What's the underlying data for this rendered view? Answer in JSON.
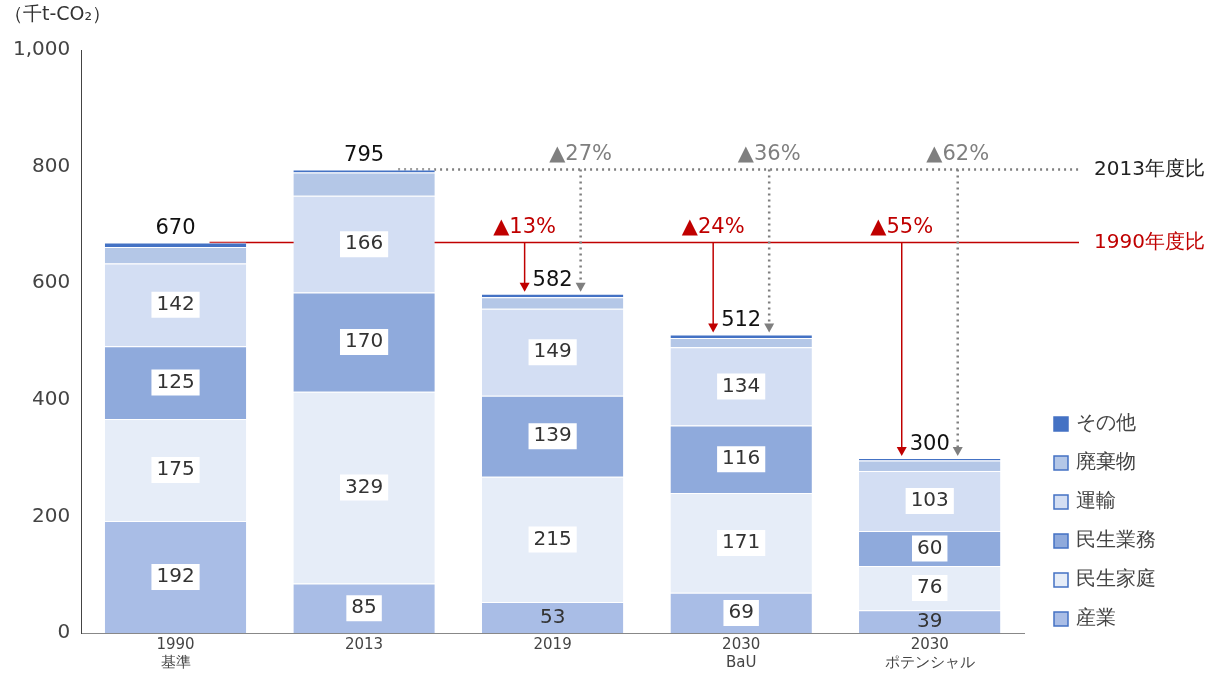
{
  "chart_data": {
    "type": "bar",
    "stacked": true,
    "ylabel": "（千t-CO₂）",
    "categories": [
      "1990\n基準",
      "2013",
      "2019",
      "2030\nBaU",
      "2030\nポテンシャル"
    ],
    "series": [
      {
        "name": "産業",
        "color": "#a9bde6",
        "values": [
          192,
          85,
          53,
          69,
          39
        ],
        "value_labels": [
          "192",
          "85",
          "53",
          "69",
          "39"
        ]
      },
      {
        "name": "民生家庭",
        "color": "#e6edf8",
        "values": [
          175,
          329,
          215,
          171,
          76
        ],
        "value_labels": [
          "175",
          "329",
          "215",
          "171",
          "76"
        ]
      },
      {
        "name": "民生業務",
        "color": "#8faadc",
        "values": [
          125,
          170,
          139,
          116,
          60
        ],
        "value_labels": [
          "125",
          "170",
          "139",
          "116",
          "60"
        ]
      },
      {
        "name": "運輸",
        "color": "#d3def3",
        "values": [
          142,
          166,
          149,
          134,
          103
        ],
        "value_labels": [
          "142",
          "166",
          "149",
          "134",
          "103"
        ]
      },
      {
        "name": "廃棄物",
        "color": "#b4c7e7",
        "values": [
          28,
          40,
          20,
          16,
          18
        ]
      },
      {
        "name": "その他",
        "color": "#4472c4",
        "values": [
          8,
          5,
          6,
          6,
          4
        ]
      }
    ],
    "totals": [
      "670",
      "795",
      "582",
      "512",
      "300"
    ],
    "ylim": [
      0,
      1000
    ],
    "yticks": [
      0,
      200,
      400,
      600,
      800,
      {
        "value": 1000,
        "label": "1,000"
      }
    ],
    "grid": false,
    "legend": "right",
    "ref_lines": [
      {
        "axis": "y",
        "value": 795,
        "label": "2013年度比",
        "color": "#7f7f7f",
        "line_style": "dotted"
      },
      {
        "axis": "y",
        "value": 670,
        "label": "1990年度比",
        "color": "#c00000",
        "line_style": "solid"
      }
    ],
    "annotations": [
      {
        "text": "▲13%",
        "x": "2019",
        "y": 670
      },
      {
        "text": "▲24%",
        "x": "2030\nBaU",
        "y": 670
      },
      {
        "text": "▲55%",
        "x": "2030\nポテンシャル",
        "y": 670
      },
      {
        "text": "▲27%",
        "x": "2019",
        "y": 795
      },
      {
        "text": "▲36%",
        "x": "2030\nBaU",
        "y": 795
      },
      {
        "text": "▲62%",
        "x": "2030\nポテンシャル",
        "y": 795
      }
    ]
  }
}
